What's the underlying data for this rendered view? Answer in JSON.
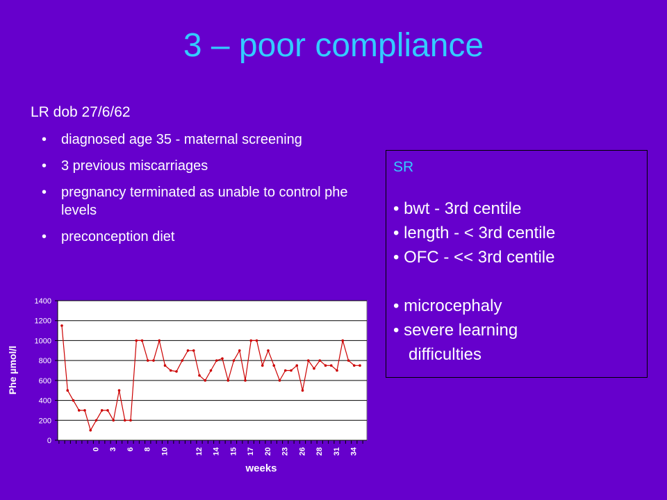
{
  "slide": {
    "title": "3 – poor compliance",
    "patient": "LR dob 27/6/62",
    "bullets": [
      "diagnosed age 35 - maternal screening",
      "3 previous miscarriages",
      "pregnancy terminated as unable to control phe levels",
      "preconception diet"
    ],
    "bullet_symbol": "•"
  },
  "sr_box": {
    "title": "SR",
    "items": [
      "• bwt - 3rd centile",
      "• length - < 3rd centile",
      "• OFC - << 3rd centile"
    ],
    "items2": [
      "• microcephaly",
      "• severe learning",
      "difficulties"
    ]
  },
  "colors": {
    "background": "#6600cc",
    "title": "#33ccff",
    "text": "#ffffff",
    "line": "#cc0000"
  },
  "chart_data": {
    "type": "line",
    "xlabel": "weeks",
    "ylabel": "Phe µmol/l",
    "ylim": [
      0,
      1400
    ],
    "yticks": [
      0,
      200,
      400,
      600,
      800,
      1000,
      1200,
      1400
    ],
    "x_tick_labels": [
      "0",
      "3",
      "6",
      "8",
      "10",
      "12",
      "14",
      "15",
      "17",
      "20",
      "23",
      "26",
      "28",
      "31",
      "34"
    ],
    "series": [
      {
        "values": [
          1150,
          500,
          400,
          300,
          300,
          100,
          200,
          300,
          300,
          200,
          500,
          200,
          200,
          1000,
          1000,
          800,
          800,
          1000,
          750,
          700,
          690,
          800,
          900,
          900,
          650,
          600,
          700,
          800,
          820,
          600,
          800,
          900,
          600,
          1000,
          1000,
          750,
          900,
          750,
          600,
          700,
          700,
          750,
          500,
          800,
          720,
          800,
          750,
          750,
          700,
          1000,
          800,
          750,
          750
        ]
      }
    ]
  }
}
